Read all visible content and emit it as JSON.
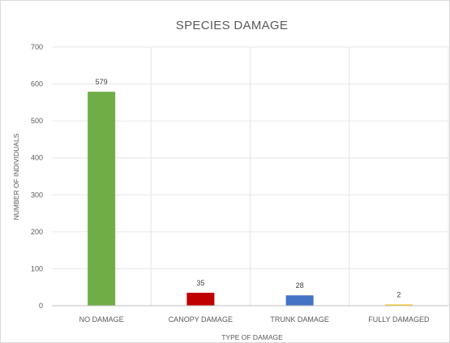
{
  "chart_data": {
    "type": "bar",
    "title": "SPECIES DAMAGE",
    "xlabel": "TYPE OF DAMAGE",
    "ylabel": "NUMBER OF INDIVIDUALS",
    "categories": [
      "NO DAMAGE",
      "CANOPY DAMAGE",
      "TRUNK DAMAGE",
      "FULLY DAMAGED"
    ],
    "values": [
      579,
      35,
      28,
      2
    ],
    "data_labels": [
      "579",
      "35",
      "28",
      "2"
    ],
    "ylim": [
      0,
      700
    ],
    "yticks": [
      0,
      100,
      200,
      300,
      400,
      500,
      600,
      700
    ],
    "colors": [
      "#70ad47",
      "#c00000",
      "#4472c4",
      "#ffc000"
    ],
    "grid": true,
    "legend": "none"
  }
}
